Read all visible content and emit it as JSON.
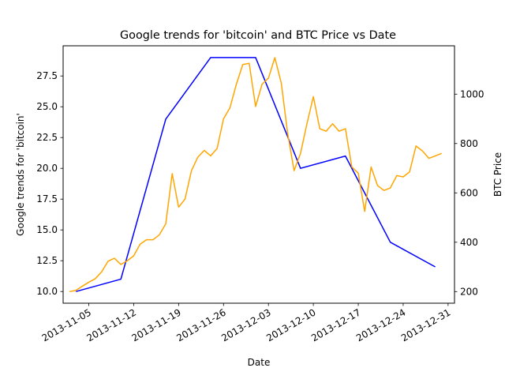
{
  "chart_data": {
    "type": "line",
    "title": "Google trends for 'bitcoin' and BTC Price vs Date",
    "xlabel": "Date",
    "ylabel_left": "Google trends for 'bitcoin'",
    "ylabel_right": "BTC Price",
    "xlim": [
      "2013-11-01",
      "2014-01-01"
    ],
    "ylim_left": [
      9.05,
      29.95
    ],
    "ylim_right": [
      153,
      1196
    ],
    "x_ticks": [
      "2013-11-05",
      "2013-11-12",
      "2013-11-19",
      "2013-11-26",
      "2013-12-03",
      "2013-12-10",
      "2013-12-17",
      "2013-12-24",
      "2013-12-31"
    ],
    "y_ticks_left": [
      "10.0",
      "12.5",
      "15.0",
      "17.5",
      "20.0",
      "22.5",
      "25.0",
      "27.5"
    ],
    "y_ticks_right": [
      "200",
      "400",
      "600",
      "800",
      "1000"
    ],
    "grid": false,
    "legend": "none",
    "series": [
      {
        "axis": "left",
        "color": "#0000ff",
        "x": [
          "2013-11-03",
          "2013-11-10",
          "2013-11-17",
          "2013-11-24",
          "2013-12-01",
          "2013-12-08",
          "2013-12-15",
          "2013-12-22",
          "2013-12-29"
        ],
        "y": [
          10,
          11,
          24,
          29,
          29,
          20,
          21,
          14,
          12
        ]
      },
      {
        "axis": "right",
        "color": "#ffa500",
        "x": [
          "2013-11-02",
          "2013-11-03",
          "2013-11-04",
          "2013-11-05",
          "2013-11-06",
          "2013-11-07",
          "2013-11-08",
          "2013-11-09",
          "2013-11-10",
          "2013-11-11",
          "2013-11-12",
          "2013-11-13",
          "2013-11-14",
          "2013-11-15",
          "2013-11-16",
          "2013-11-17",
          "2013-11-18",
          "2013-11-19",
          "2013-11-20",
          "2013-11-21",
          "2013-11-22",
          "2013-11-23",
          "2013-11-24",
          "2013-11-25",
          "2013-11-26",
          "2013-11-27",
          "2013-11-28",
          "2013-11-29",
          "2013-11-30",
          "2013-12-01",
          "2013-12-02",
          "2013-12-03",
          "2013-12-04",
          "2013-12-05",
          "2013-12-06",
          "2013-12-07",
          "2013-12-08",
          "2013-12-09",
          "2013-12-10",
          "2013-12-11",
          "2013-12-12",
          "2013-12-13",
          "2013-12-14",
          "2013-12-15",
          "2013-12-16",
          "2013-12-17",
          "2013-12-18",
          "2013-12-19",
          "2013-12-20",
          "2013-12-21",
          "2013-12-22",
          "2013-12-23",
          "2013-12-24",
          "2013-12-25",
          "2013-12-26",
          "2013-12-27",
          "2013-12-28",
          "2013-12-29",
          "2013-12-30"
        ],
        "y": [
          200,
          205,
          222,
          238,
          252,
          280,
          323,
          335,
          310,
          325,
          345,
          392,
          410,
          410,
          430,
          475,
          678,
          542,
          575,
          690,
          745,
          772,
          750,
          780,
          900,
          945,
          1040,
          1120,
          1125,
          950,
          1040,
          1065,
          1148,
          1045,
          840,
          690,
          760,
          880,
          990,
          860,
          850,
          880,
          850,
          860,
          705,
          680,
          525,
          705,
          630,
          610,
          620,
          670,
          665,
          685,
          790,
          770,
          740,
          750,
          760
        ]
      }
    ]
  }
}
